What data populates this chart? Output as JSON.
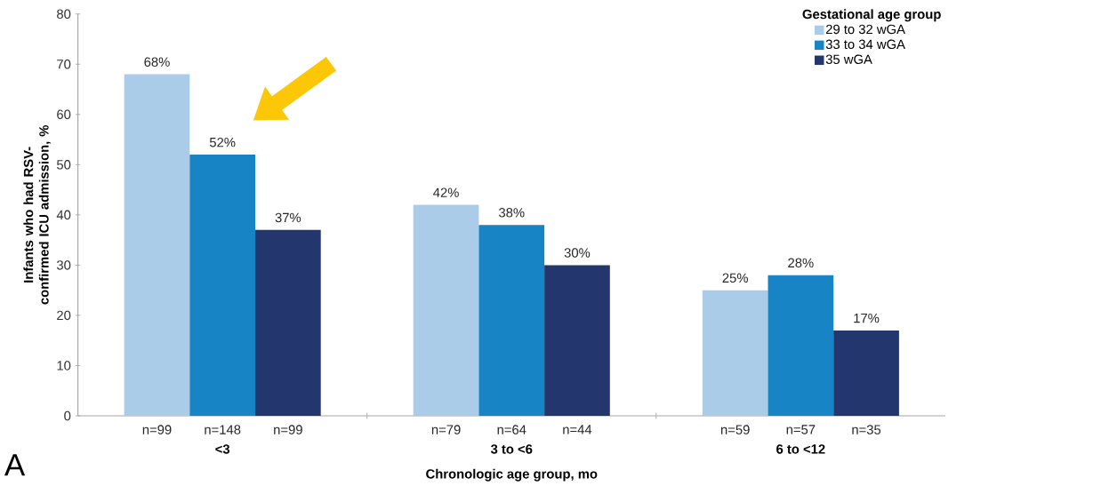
{
  "chart_data": {
    "type": "bar",
    "categories": [
      "<3",
      "3 to <6",
      "6 to <12"
    ],
    "series": [
      {
        "name": "29 to 32 wGA",
        "color": "#abcce8",
        "values": [
          68,
          42,
          25
        ],
        "value_labels": [
          "68%",
          "42%",
          "25%"
        ]
      },
      {
        "name": "33 to 34 wGA",
        "color": "#1784c6",
        "values": [
          52,
          38,
          28
        ],
        "value_labels": [
          "52%",
          "38%",
          "28%"
        ]
      },
      {
        "name": "35 wGA",
        "color": "#23366d",
        "values": [
          37,
          30,
          17
        ],
        "value_labels": [
          "37%",
          "30%",
          "17%"
        ]
      }
    ],
    "xlabel": "Chronologic age group, mo",
    "ylabel": "Infants who had RSV-confirmed ICU admission, %",
    "legend_title": "Gestational age group",
    "legend": "top right",
    "ylim": [
      0,
      80
    ],
    "yticks": [
      0,
      10,
      20,
      30,
      40,
      50,
      60,
      70,
      80
    ],
    "grid": false,
    "annotations": [
      "n=99",
      "n=148",
      "n=99",
      "n=79",
      "n=64",
      "n=44",
      "n=59",
      "n=57",
      "n=35",
      "A"
    ]
  }
}
